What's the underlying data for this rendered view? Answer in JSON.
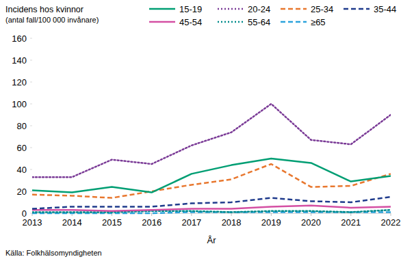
{
  "chart_data": {
    "type": "line",
    "title": "Incidens hos kvinnor",
    "subtitle": "(antal fall/100 000 invånare)",
    "x_label": "År",
    "source": "Källa: Folkhälsomyndigheten",
    "x": [
      2013,
      2014,
      2015,
      2016,
      2017,
      2018,
      2019,
      2020,
      2021,
      2022
    ],
    "xlim": [
      2013,
      2022
    ],
    "xticks": [
      2013,
      2014,
      2015,
      2016,
      2017,
      2018,
      2019,
      2020,
      2021,
      2022
    ],
    "ylim": [
      0,
      160
    ],
    "yticks": [
      0,
      20,
      40,
      60,
      80,
      100,
      120,
      140,
      160
    ],
    "grid": false,
    "legend": "top",
    "series": [
      {
        "name": "15-19",
        "color": "#009e73",
        "line_style": "solid",
        "values": [
          21,
          19,
          24,
          19,
          36,
          44,
          50,
          46,
          29,
          34
        ]
      },
      {
        "name": "20-24",
        "color": "#7a3a96",
        "line_style": "dotted",
        "values": [
          33,
          33,
          49,
          45,
          62,
          74,
          100,
          67,
          63,
          90
        ]
      },
      {
        "name": "25-34",
        "color": "#e8772e",
        "line_style": "dashed",
        "values": [
          17,
          16,
          14,
          20,
          26,
          31,
          45,
          24,
          25,
          36
        ]
      },
      {
        "name": "35-44",
        "color": "#1f3b8c",
        "line_style": "dashed",
        "values": [
          4,
          6,
          6,
          6,
          9,
          10,
          14,
          11,
          10,
          15
        ]
      },
      {
        "name": "45-54",
        "color": "#d44fa3",
        "line_style": "solid",
        "values": [
          3,
          3,
          2,
          3,
          4,
          4,
          6,
          7,
          5,
          6
        ]
      },
      {
        "name": "55-64",
        "color": "#008b8b",
        "line_style": "dotted",
        "values": [
          1,
          1,
          1,
          2,
          2,
          1,
          2,
          2,
          1,
          3
        ]
      },
      {
        "name": "≥65",
        "color": "#2ba3dc",
        "line_style": "dashed",
        "values": [
          0,
          0,
          0,
          0,
          1,
          1,
          1,
          1,
          1,
          1
        ]
      }
    ]
  }
}
